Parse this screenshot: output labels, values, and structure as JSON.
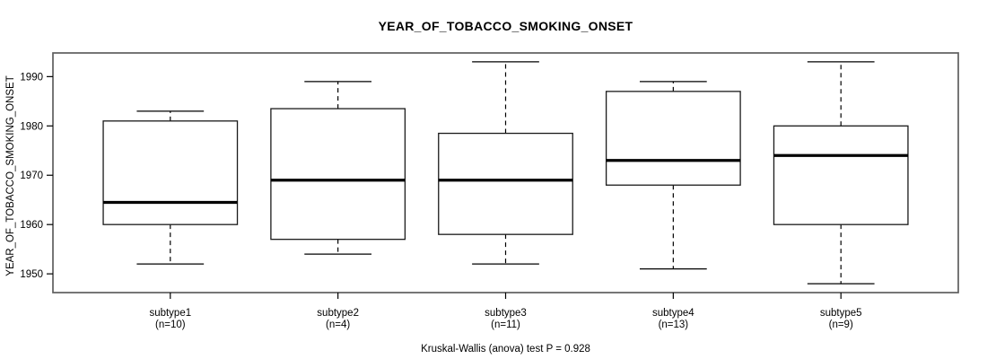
{
  "chart_data": {
    "type": "boxplot",
    "title": "YEAR_OF_TOBACCO_SMOKING_ONSET",
    "ylabel": "YEAR_OF_TOBACCO_SMOKING_ONSET",
    "xlabel": "",
    "caption": "Kruskal-Wallis (anova) test P = 0.928",
    "yticks": [
      1950,
      1960,
      1970,
      1980,
      1990
    ],
    "ylim": [
      1946.2,
      1994.8
    ],
    "grid": false,
    "legend": null,
    "colors": {
      "background": "#ffffff",
      "frame": "#5e5e5e",
      "box_stroke": "#1a1a1a",
      "median": "#000000",
      "whisker": "#000000",
      "text": "#000000"
    },
    "groups": [
      {
        "label": "subtype1",
        "n": 10,
        "n_label": "(n=10)",
        "whisker_low": 1952,
        "q1": 1960,
        "median": 1964.5,
        "q3": 1981,
        "whisker_high": 1983
      },
      {
        "label": "subtype2",
        "n": 4,
        "n_label": "(n=4)",
        "whisker_low": 1954,
        "q1": 1957,
        "median": 1969,
        "q3": 1983.5,
        "whisker_high": 1989
      },
      {
        "label": "subtype3",
        "n": 11,
        "n_label": "(n=11)",
        "whisker_low": 1952,
        "q1": 1958,
        "median": 1969,
        "q3": 1978.5,
        "whisker_high": 1993
      },
      {
        "label": "subtype4",
        "n": 13,
        "n_label": "(n=13)",
        "whisker_low": 1951,
        "q1": 1968,
        "median": 1973,
        "q3": 1987,
        "whisker_high": 1989
      },
      {
        "label": "subtype5",
        "n": 9,
        "n_label": "(n=9)",
        "whisker_low": 1948,
        "q1": 1960,
        "median": 1974,
        "q3": 1980,
        "whisker_high": 1993
      }
    ]
  }
}
